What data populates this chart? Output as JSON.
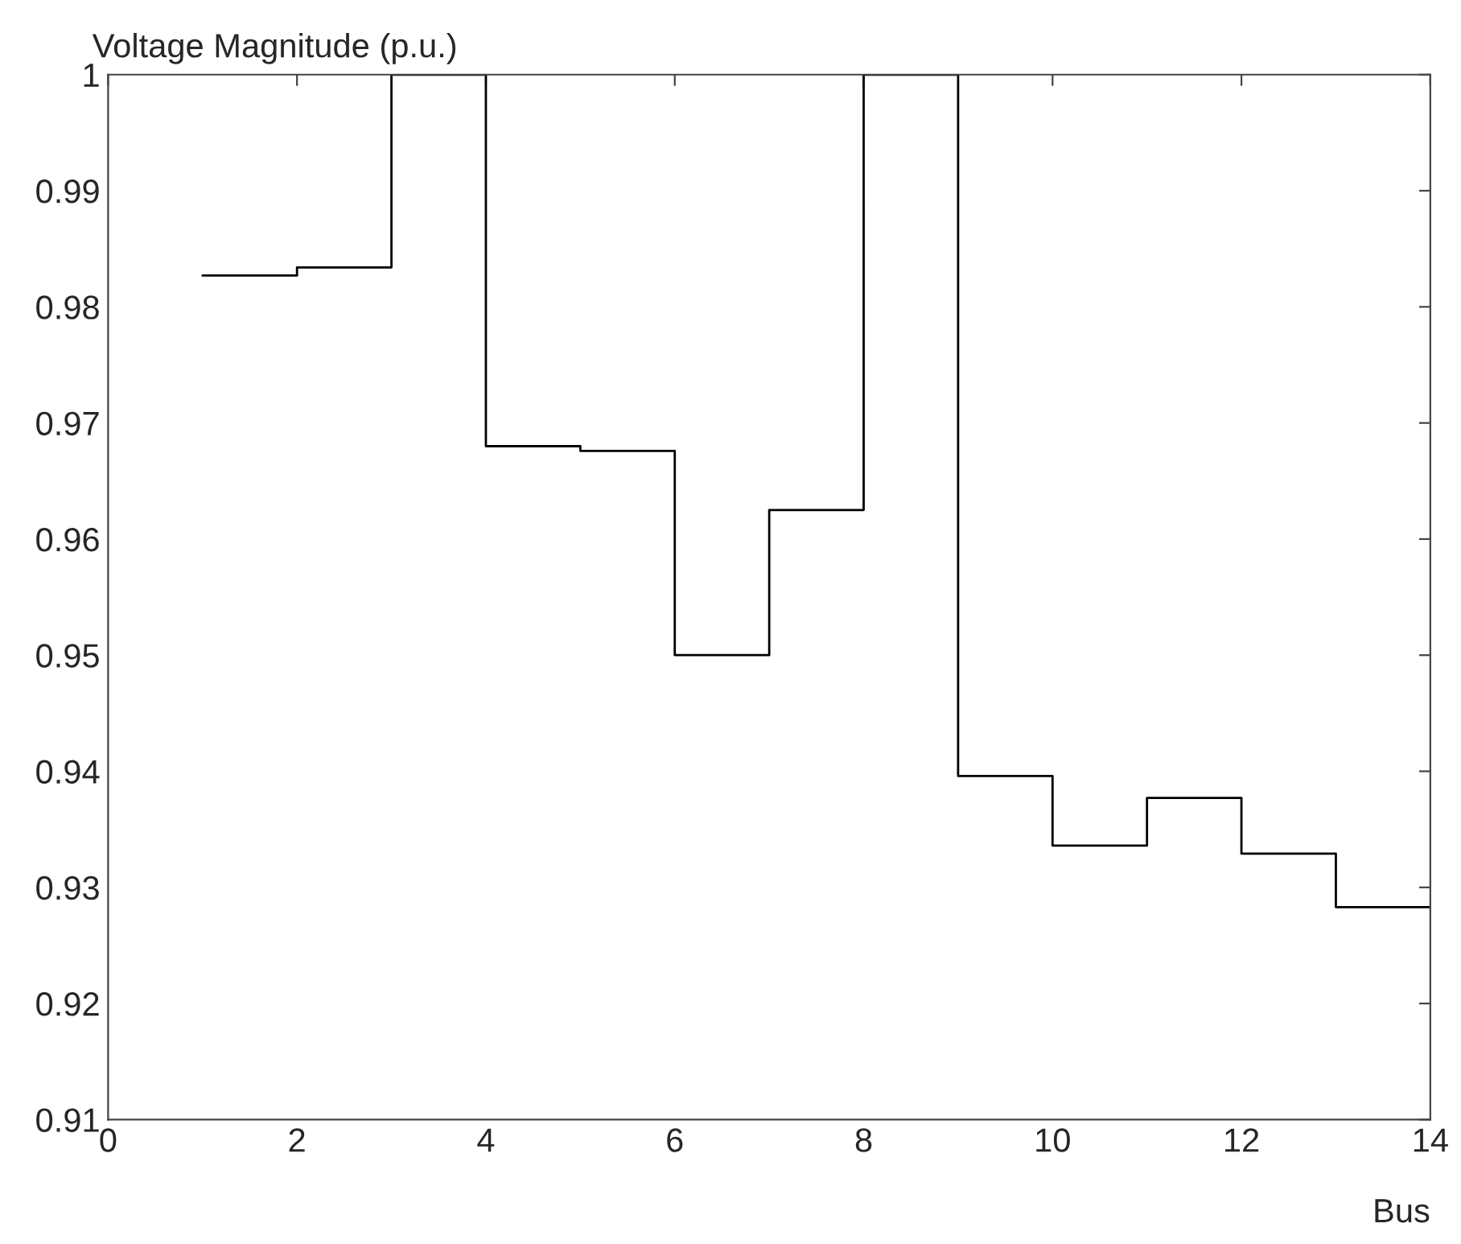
{
  "chart_data": {
    "type": "step",
    "ylabel": "Voltage Magnitude (p.u.)",
    "xlabel": "Bus",
    "x": [
      1,
      2,
      3,
      4,
      5,
      6,
      7,
      8,
      9,
      10,
      11,
      12,
      13,
      14
    ],
    "values": [
      0.9827,
      0.9834,
      1.0,
      0.968,
      0.9676,
      0.95,
      0.9625,
      1.0,
      0.9396,
      0.9336,
      0.9377,
      0.9329,
      0.9283,
      0.9283
    ],
    "color": "#000000",
    "xlim": [
      0,
      14
    ],
    "ylim": [
      0.91,
      1
    ],
    "xticks": [
      0,
      2,
      4,
      6,
      8,
      10,
      12,
      14
    ],
    "yticks": [
      0.91,
      0.92,
      0.93,
      0.94,
      0.95,
      0.96,
      0.97,
      0.98,
      0.99,
      1
    ],
    "grid": false,
    "line_style": "solid"
  }
}
